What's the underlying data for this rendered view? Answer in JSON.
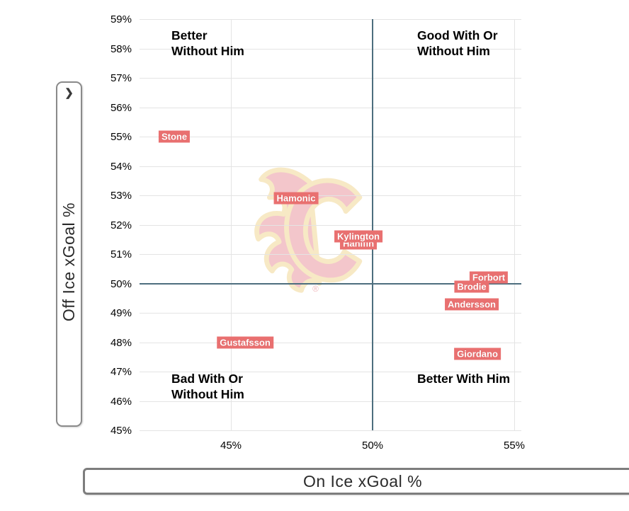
{
  "y_axis_panel": {
    "toggle_icon": "chevron-right",
    "glyph": "❯"
  },
  "chart_data": {
    "type": "scatter",
    "title": "",
    "xlabel": "On Ice xGoal %",
    "ylabel": "Off Ice xGoal %",
    "xlim": [
      41.8,
      56.2
    ],
    "ylim": [
      45,
      59
    ],
    "grid": true,
    "x_ticks": [
      {
        "v": 45,
        "label": "45%"
      },
      {
        "v": 50,
        "label": "50%"
      },
      {
        "v": 55,
        "label": "55%"
      }
    ],
    "y_ticks": [
      {
        "v": 59,
        "label": "59%"
      },
      {
        "v": 58,
        "label": "58%"
      },
      {
        "v": 57,
        "label": "57%"
      },
      {
        "v": 56,
        "label": "56%"
      },
      {
        "v": 55,
        "label": "55%"
      },
      {
        "v": 54,
        "label": "54%"
      },
      {
        "v": 53,
        "label": "53%"
      },
      {
        "v": 52,
        "label": "52%"
      },
      {
        "v": 51,
        "label": "51%"
      },
      {
        "v": 50,
        "label": "50%"
      },
      {
        "v": 49,
        "label": "49%"
      },
      {
        "v": 48,
        "label": "48%"
      },
      {
        "v": 47,
        "label": "47%"
      },
      {
        "v": 46,
        "label": "46%"
      },
      {
        "v": 45,
        "label": "45%"
      }
    ],
    "reference_lines": {
      "x": 50,
      "y": 50
    },
    "quadrant_labels": [
      {
        "position": "top-left",
        "lines": [
          "Better",
          "Without Him"
        ]
      },
      {
        "position": "top-right",
        "lines": [
          "Good With Or",
          "Without Him"
        ]
      },
      {
        "position": "bottom-left",
        "lines": [
          "Bad With Or",
          "Without Him"
        ]
      },
      {
        "position": "bottom-right",
        "lines": [
          "Better With Him"
        ]
      }
    ],
    "points": [
      {
        "label": "Stone",
        "x": 43.0,
        "y": 55.0
      },
      {
        "label": "Hamonic",
        "x": 47.3,
        "y": 52.9
      },
      {
        "label": "Hanifin",
        "x": 49.5,
        "y": 51.35
      },
      {
        "label": "Kylington",
        "x": 49.5,
        "y": 51.6
      },
      {
        "label": "Gustafsson",
        "x": 45.5,
        "y": 48.0
      },
      {
        "label": "Forbort",
        "x": 54.1,
        "y": 50.2
      },
      {
        "label": "Brodie",
        "x": 53.5,
        "y": 49.9
      },
      {
        "label": "Andersson",
        "x": 53.5,
        "y": 49.3
      },
      {
        "label": "Giordano",
        "x": 53.7,
        "y": 47.6
      }
    ],
    "colors": {
      "point_label_bg": "#e97070",
      "point_label_text": "#ffffff",
      "reference_line": "#4d6e7e",
      "gridline": "#e4e4e4",
      "watermark_pink": "#f3c6cb",
      "watermark_cream": "#f7e9c5"
    },
    "watermark": "calgary-flames-logo",
    "registered_mark": "®"
  }
}
